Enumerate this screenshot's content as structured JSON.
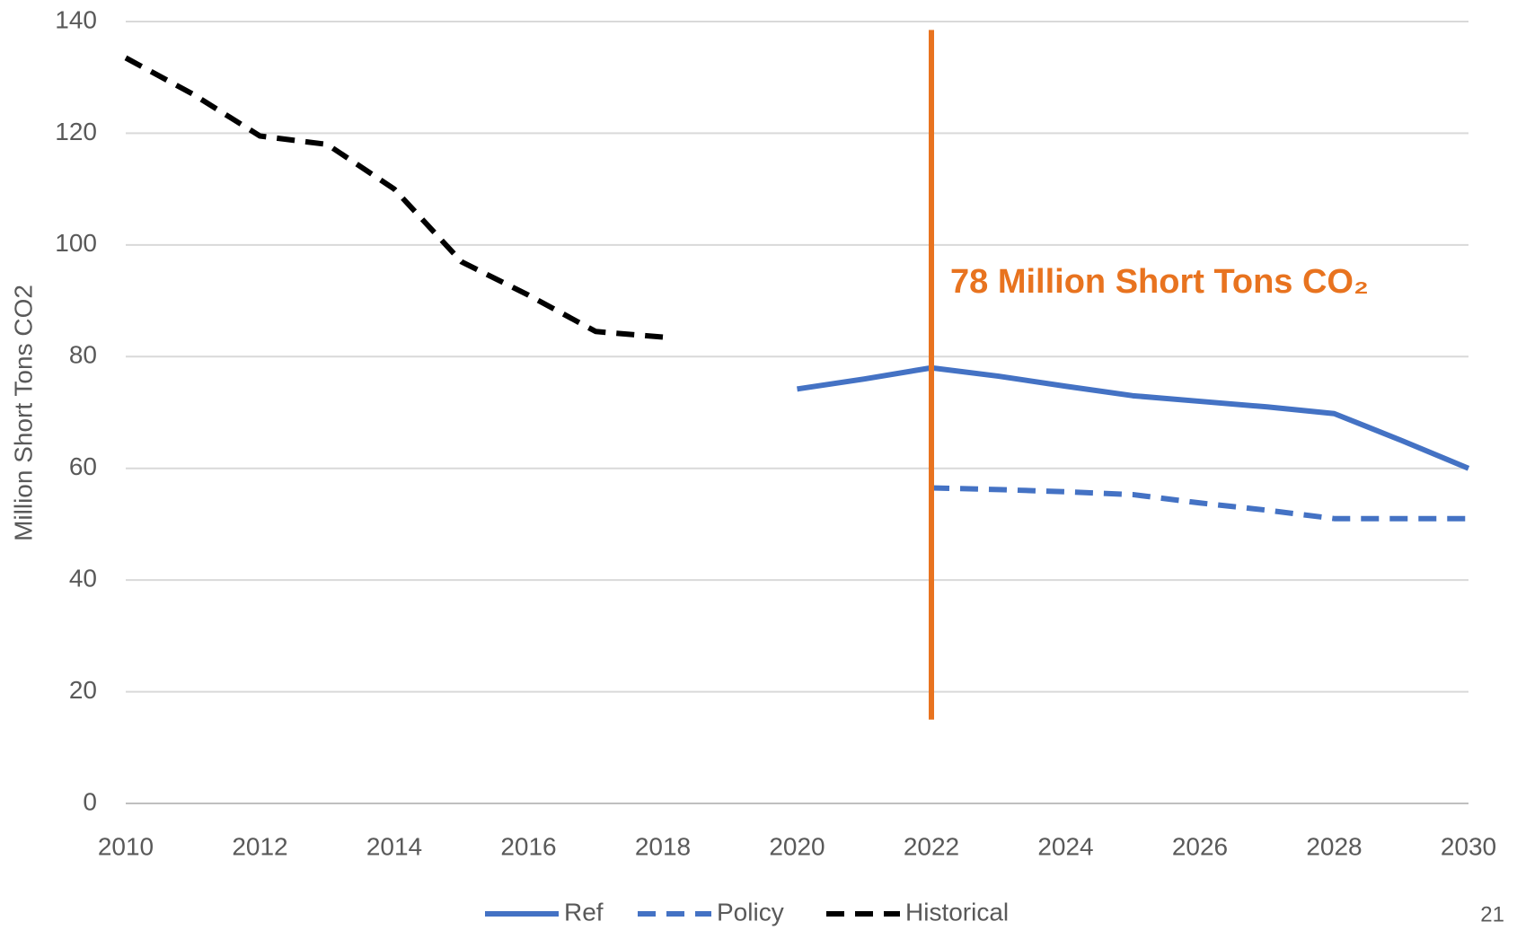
{
  "chart_data": {
    "type": "line",
    "y_label": "Million Short Tons CO2",
    "x": [
      2010,
      2011,
      2012,
      2013,
      2014,
      2015,
      2016,
      2017,
      2018,
      2019,
      2020,
      2021,
      2022,
      2023,
      2024,
      2025,
      2026,
      2027,
      2028,
      2029,
      2030
    ],
    "series": [
      {
        "name": "Ref",
        "color": "#4472c4",
        "dashed": false,
        "values": [
          null,
          null,
          null,
          null,
          null,
          null,
          null,
          null,
          null,
          null,
          74.2,
          76,
          78,
          76.5,
          74.7,
          73,
          72,
          71,
          69.8,
          65,
          60
        ]
      },
      {
        "name": "Policy",
        "color": "#4472c4",
        "dashed": true,
        "values": [
          null,
          null,
          null,
          null,
          null,
          null,
          null,
          null,
          null,
          null,
          null,
          null,
          56.5,
          56.2,
          55.8,
          55.3,
          53.8,
          52.5,
          51,
          51,
          51
        ]
      },
      {
        "name": "Historical",
        "color": "#000000",
        "dashed": true,
        "values": [
          133.5,
          127,
          119.5,
          118,
          110,
          97,
          91,
          84.5,
          83.5,
          null,
          null,
          null,
          null,
          null,
          null,
          null,
          null,
          null,
          null,
          null,
          null
        ]
      }
    ],
    "annotation": {
      "text": "78 Million Short Tons CO₂",
      "x": 2022,
      "y_range": [
        15,
        138.5
      ],
      "color": "#e8731f"
    },
    "xlim": [
      2010,
      2030
    ],
    "xticks": [
      2010,
      2012,
      2014,
      2016,
      2018,
      2020,
      2022,
      2024,
      2026,
      2028,
      2030
    ],
    "ylim": [
      0,
      140
    ],
    "yticks": [
      0,
      20,
      40,
      60,
      80,
      100,
      120,
      140
    ],
    "grid": true,
    "legend": "bottom"
  },
  "page_number": "21"
}
